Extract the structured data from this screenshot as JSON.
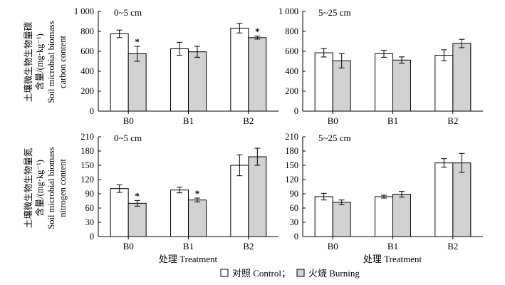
{
  "chart_data": [
    {
      "type": "bar",
      "title": "0~5 cm",
      "ylabel_cn": "土壤微生物生物量碳",
      "ylabel_cn_2": "含量/(mg·kg⁻¹)",
      "ylabel_en_1": "Soil microbial biomass",
      "ylabel_en_2": "carbon content",
      "ylim": [
        0,
        1000
      ],
      "yticks": [
        0,
        200,
        400,
        600,
        800,
        1000
      ],
      "ytick_labels": [
        "0",
        "200",
        "400",
        "600",
        "800",
        "1 000"
      ],
      "categories": [
        "B0",
        "B1",
        "B2"
      ],
      "series": [
        {
          "name": "Control",
          "values": [
            775,
            625,
            832
          ],
          "errors": [
            38,
            65,
            48
          ]
        },
        {
          "name": "Burning",
          "values": [
            575,
            595,
            737
          ],
          "errors": [
            75,
            55,
            15
          ]
        }
      ],
      "significance": [
        "*",
        "",
        "*"
      ]
    },
    {
      "type": "bar",
      "title": "5~25 cm",
      "ylim": [
        0,
        1000
      ],
      "yticks": [
        0,
        200,
        400,
        600,
        800,
        1000
      ],
      "ytick_labels": [
        "0",
        "200",
        "400",
        "600",
        "800",
        "1 000"
      ],
      "categories": [
        "B0",
        "B1",
        "B2"
      ],
      "series": [
        {
          "name": "Control",
          "values": [
            585,
            575,
            560
          ],
          "errors": [
            42,
            35,
            55
          ]
        },
        {
          "name": "Burning",
          "values": [
            505,
            512,
            678
          ],
          "errors": [
            72,
            32,
            42
          ]
        }
      ],
      "significance": [
        "",
        "",
        ""
      ]
    },
    {
      "type": "bar",
      "title": "0~5 cm",
      "ylabel_cn": "土壤微生物生物量氮",
      "ylabel_cn_2": "含量/(mg·kg⁻¹)",
      "ylabel_en_1": "Soil microbial biomass",
      "ylabel_en_2": "nitrogen content",
      "xlabel": "处理 Treatment",
      "ylim": [
        0,
        210
      ],
      "yticks": [
        0,
        30,
        60,
        90,
        120,
        150,
        180,
        210
      ],
      "ytick_labels": [
        "0",
        "30",
        "60",
        "90",
        "120",
        "150",
        "180",
        "210"
      ],
      "categories": [
        "B0",
        "B1",
        "B2"
      ],
      "series": [
        {
          "name": "Control",
          "values": [
            101,
            98,
            150
          ],
          "errors": [
            8,
            6,
            22
          ]
        },
        {
          "name": "Burning",
          "values": [
            70,
            77,
            168
          ],
          "errors": [
            6,
            4,
            18
          ]
        }
      ],
      "significance": [
        "*",
        "*",
        ""
      ]
    },
    {
      "type": "bar",
      "title": "5~25 cm",
      "xlabel": "处理 Treatment",
      "ylim": [
        0,
        210
      ],
      "yticks": [
        0,
        30,
        60,
        90,
        120,
        150,
        180,
        210
      ],
      "ytick_labels": [
        "0",
        "30",
        "60",
        "90",
        "120",
        "150",
        "180",
        "210"
      ],
      "categories": [
        "B0",
        "B1",
        "B2"
      ],
      "series": [
        {
          "name": "Control",
          "values": [
            84,
            84,
            155
          ],
          "errors": [
            7,
            3,
            9
          ]
        },
        {
          "name": "Burning",
          "values": [
            72,
            89,
            155
          ],
          "errors": [
            5,
            6,
            20
          ]
        }
      ],
      "significance": [
        "",
        "",
        ""
      ]
    }
  ],
  "legend": {
    "control": "对照 Control；",
    "burning": "火烧 Burning"
  },
  "colors": {
    "control_fill": "#ffffff",
    "burning_fill": "#d2d2d2",
    "stroke": "#000000"
  }
}
